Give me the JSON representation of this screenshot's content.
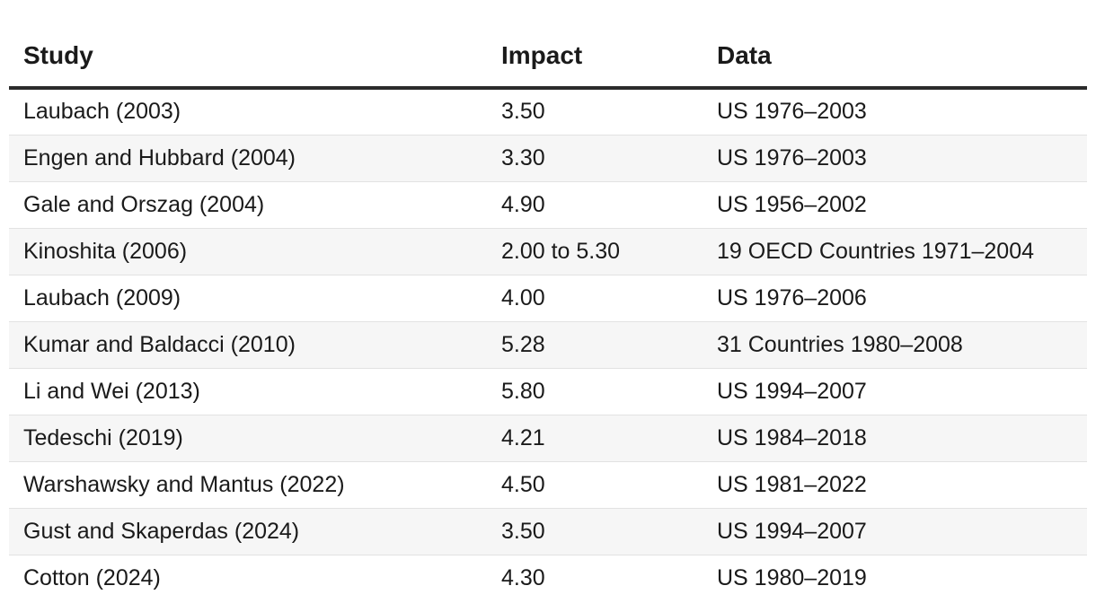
{
  "table": {
    "headers": [
      "Study",
      "Impact",
      "Data"
    ],
    "rows": [
      [
        "Laubach (2003)",
        "3.50",
        "US 1976–2003"
      ],
      [
        "Engen and Hubbard (2004)",
        "3.30",
        "US 1976–2003"
      ],
      [
        "Gale and Orszag (2004)",
        "4.90",
        "US 1956–2002"
      ],
      [
        "Kinoshita (2006)",
        "2.00 to 5.30",
        "19 OECD Countries 1971–2004"
      ],
      [
        "Laubach (2009)",
        "4.00",
        "US 1976–2006"
      ],
      [
        "Kumar and Baldacci (2010)",
        "5.28",
        "31 Countries 1980–2008"
      ],
      [
        "Li and Wei (2013)",
        "5.80",
        "US 1994–2007"
      ],
      [
        "Tedeschi (2019)",
        "4.21",
        "US 1984–2018"
      ],
      [
        "Warshawsky and Mantus (2022)",
        "4.50",
        "US 1981–2022"
      ],
      [
        "Gust and Skaperdas (2024)",
        "3.50",
        "US 1994–2007"
      ],
      [
        "Cotton (2024)",
        "4.30",
        "US 1980–2019"
      ]
    ]
  }
}
